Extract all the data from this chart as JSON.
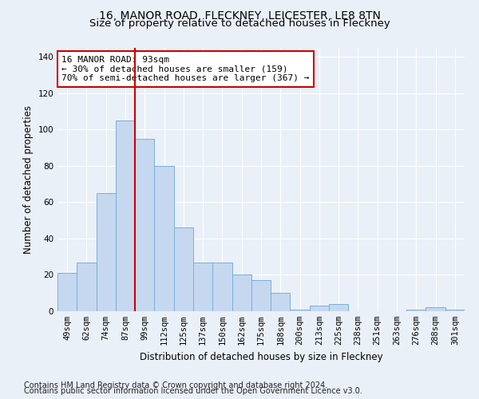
{
  "title_line1": "16, MANOR ROAD, FLECKNEY, LEICESTER, LE8 8TN",
  "title_line2": "Size of property relative to detached houses in Fleckney",
  "xlabel": "Distribution of detached houses by size in Fleckney",
  "ylabel": "Number of detached properties",
  "categories": [
    "49sqm",
    "62sqm",
    "74sqm",
    "87sqm",
    "99sqm",
    "112sqm",
    "125sqm",
    "137sqm",
    "150sqm",
    "162sqm",
    "175sqm",
    "188sqm",
    "200sqm",
    "213sqm",
    "225sqm",
    "238sqm",
    "251sqm",
    "263sqm",
    "276sqm",
    "288sqm",
    "301sqm"
  ],
  "values": [
    21,
    27,
    65,
    105,
    95,
    80,
    46,
    27,
    27,
    20,
    17,
    10,
    1,
    3,
    4,
    0,
    0,
    0,
    1,
    2,
    1
  ],
  "bar_color": "#c5d8f0",
  "bar_edge_color": "#7bafd4",
  "property_line_x": 3.5,
  "annotation_line1": "16 MANOR ROAD: 93sqm",
  "annotation_line2": "← 30% of detached houses are smaller (159)",
  "annotation_line3": "70% of semi-detached houses are larger (367) →",
  "red_line_color": "#cc0000",
  "annotation_box_facecolor": "#ffffff",
  "annotation_box_edgecolor": "#cc0000",
  "ylim": [
    0,
    145
  ],
  "yticks": [
    0,
    20,
    40,
    60,
    80,
    100,
    120,
    140
  ],
  "footnote_line1": "Contains HM Land Registry data © Crown copyright and database right 2024.",
  "footnote_line2": "Contains public sector information licensed under the Open Government Licence v3.0.",
  "background_color": "#eaf0f8",
  "plot_bg_color": "#eaf0f8",
  "grid_color": "#ffffff",
  "title1_fontsize": 10,
  "title2_fontsize": 9.5,
  "axis_label_fontsize": 8.5,
  "tick_fontsize": 7.5,
  "footnote_fontsize": 7,
  "annotation_fontsize": 8
}
